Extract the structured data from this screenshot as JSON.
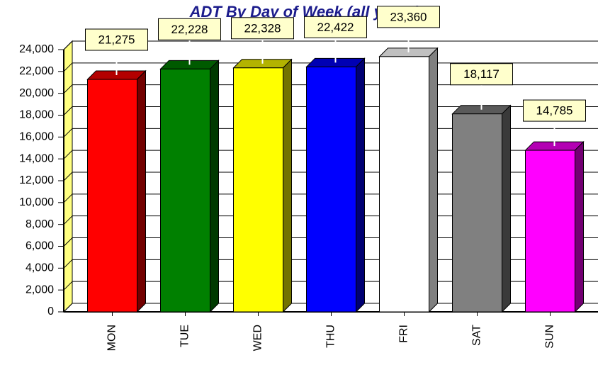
{
  "chart_data": {
    "type": "bar3d",
    "title": "ADT By Day of Week (all years)",
    "categories": [
      "MON",
      "TUE",
      "WED",
      "THU",
      "FRI",
      "SAT",
      "SUN"
    ],
    "values": [
      21275,
      22228,
      22328,
      22422,
      23360,
      18117,
      14785
    ],
    "value_labels": [
      "21,275",
      "22,228",
      "22,328",
      "22,422",
      "23,360",
      "18,117",
      "14,785"
    ],
    "colors": [
      "#ff0000",
      "#008000",
      "#ffff00",
      "#0000ff",
      "#ffffff",
      "#808080",
      "#ff00ff"
    ],
    "ylim": [
      0,
      24000
    ],
    "yticks": [
      0,
      {
        "value": 2000,
        "label": "2,000"
      },
      {
        "value": 4000,
        "label": "4,000"
      },
      {
        "value": 6000,
        "label": "6,000"
      },
      {
        "value": 8000,
        "label": "8,000"
      },
      {
        "value": 10000,
        "label": "10,000"
      },
      {
        "value": 12000,
        "label": "12,000"
      },
      {
        "value": 14000,
        "label": "14,000"
      },
      {
        "value": 16000,
        "label": "16,000"
      },
      {
        "value": 18000,
        "label": "18,000"
      },
      {
        "value": 20000,
        "label": "20,000"
      },
      {
        "value": 22000,
        "label": "22,000"
      },
      {
        "value": 24000,
        "label": "24,000"
      }
    ],
    "grid": true
  }
}
